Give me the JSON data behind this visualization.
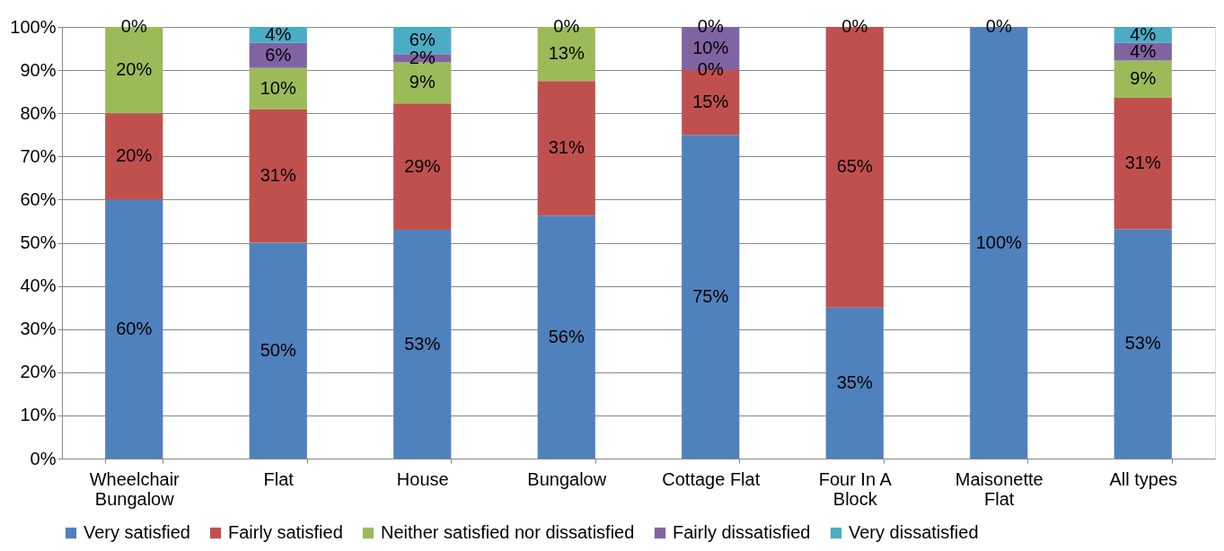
{
  "chart_data": {
    "type": "bar",
    "stacked": true,
    "categories": [
      "Wheelchair Bungalow",
      "Flat",
      "House",
      "Bungalow",
      "Cottage Flat",
      "Four In A Block",
      "Maisonette Flat",
      "All types"
    ],
    "series": [
      {
        "name": "Very satisfied",
        "color": "#4f81bd",
        "values": [
          60,
          50,
          53,
          56.3,
          75,
          35,
          100,
          53.1
        ],
        "value_labels": [
          "60%",
          "50%",
          "53%",
          "56%",
          "75%",
          "35%",
          "100%",
          "53%"
        ]
      },
      {
        "name": "Fairly satisfied",
        "color": "#c0504d",
        "values": [
          20,
          31,
          29.3,
          31.2,
          15,
          65,
          0,
          30.5
        ],
        "value_labels": [
          "20%",
          "31%",
          "29%",
          "31%",
          "15%",
          "65%",
          null,
          "31%"
        ]
      },
      {
        "name": "Neither satisfied nor dissatisfied",
        "color": "#9bbb59",
        "values": [
          20,
          9.5,
          9.5,
          12.5,
          0,
          0,
          0,
          8.6
        ],
        "value_labels": [
          "20%",
          "10%",
          "9%",
          "13%",
          "0%",
          null,
          null,
          "9%"
        ]
      },
      {
        "name": "Fairly dissatisfied",
        "color": "#8064a2",
        "values": [
          0,
          5.8,
          1.9,
          0,
          10,
          0,
          0,
          4.1
        ],
        "value_labels": [
          null,
          "6%",
          "2%",
          null,
          "10%",
          null,
          null,
          "4%"
        ]
      },
      {
        "name": "Very dissatisfied",
        "color": "#4bacc6",
        "values": [
          0,
          3.7,
          6.3,
          0,
          0,
          0,
          0,
          3.7
        ],
        "value_labels": [
          "0%",
          "4%",
          "6%",
          "0%",
          "0%",
          "0%",
          "0%",
          "4%"
        ]
      }
    ],
    "ylim": [
      0,
      100
    ],
    "yticks": [
      {
        "value": 0,
        "label": "0%"
      },
      {
        "value": 10,
        "label": "10%"
      },
      {
        "value": 20,
        "label": "20%"
      },
      {
        "value": 30,
        "label": "30%"
      },
      {
        "value": 40,
        "label": "40%"
      },
      {
        "value": 50,
        "label": "50%"
      },
      {
        "value": 60,
        "label": "60%"
      },
      {
        "value": 70,
        "label": "70%"
      },
      {
        "value": 80,
        "label": "80%"
      },
      {
        "value": 90,
        "label": "90%"
      },
      {
        "value": 100,
        "label": "100%"
      }
    ],
    "grid": "y",
    "legend": "bottom"
  }
}
